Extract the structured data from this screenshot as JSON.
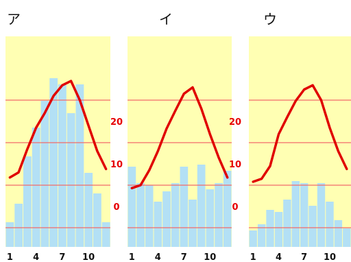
{
  "chart_data": [
    {
      "type": "bar",
      "title": "ア",
      "x": [
        1,
        2,
        3,
        4,
        5,
        6,
        7,
        8,
        9,
        10,
        11,
        12
      ],
      "xticks": [
        "1",
        "4",
        "7",
        "10"
      ],
      "yticks": [],
      "precip_bars": [
        60,
        105,
        220,
        290,
        355,
        410,
        395,
        325,
        395,
        180,
        130,
        60
      ],
      "temperature_line": [
        6.8,
        8.0,
        13.5,
        18.5,
        22.0,
        26.0,
        28.5,
        29.5,
        25.0,
        19.0,
        13.0,
        8.8
      ],
      "grid": true
    },
    {
      "type": "bar",
      "title": "イ",
      "x": [
        1,
        2,
        3,
        4,
        5,
        6,
        7,
        8,
        9,
        10,
        11,
        12
      ],
      "xticks": [
        "1",
        "4",
        "7",
        "10"
      ],
      "yticks": [
        "20",
        "10",
        "0"
      ],
      "precip_bars": [
        195,
        155,
        150,
        110,
        135,
        155,
        195,
        115,
        200,
        140,
        155,
        185
      ],
      "temperature_line": [
        4.3,
        5.0,
        8.5,
        13.0,
        18.3,
        22.5,
        26.5,
        28.0,
        23.0,
        17.0,
        11.5,
        6.8
      ],
      "grid": true
    },
    {
      "type": "bar",
      "title": "ウ",
      "x": [
        1,
        2,
        3,
        4,
        5,
        6,
        7,
        8,
        9,
        10,
        11,
        12
      ],
      "xticks": [
        "1",
        "4",
        "7",
        "10"
      ],
      "yticks": [
        "20",
        "10",
        "0"
      ],
      "precip_bars": [
        40,
        55,
        90,
        85,
        115,
        160,
        155,
        100,
        155,
        110,
        65,
        45
      ],
      "temperature_line": [
        5.8,
        6.5,
        9.5,
        17.0,
        21.0,
        24.8,
        27.5,
        28.5,
        25.0,
        18.5,
        13.0,
        8.8
      ],
      "grid": true
    }
  ]
}
